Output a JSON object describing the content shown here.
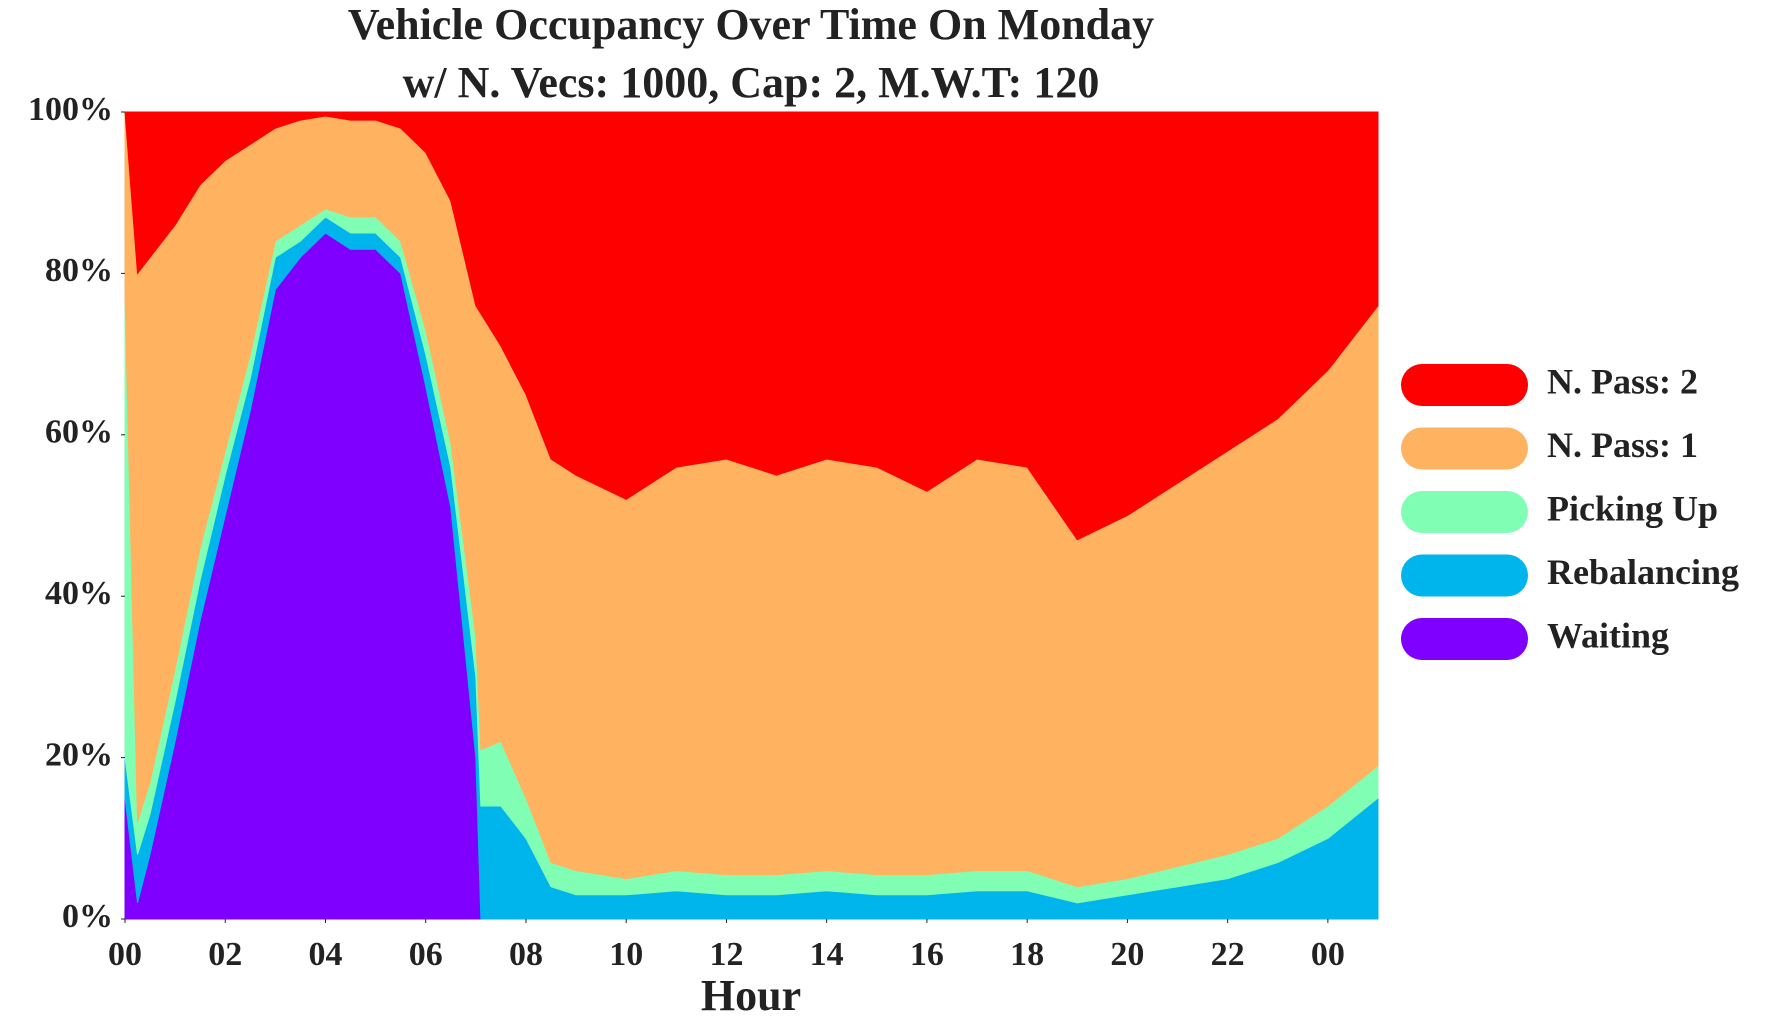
{
  "chart_data": {
    "type": "stacked_area",
    "title": "Vehicle Occupancy Over Time On Monday",
    "subtitle": "w/ N. Vecs: 1000, Cap: 2, M.W.T: 120",
    "x_label": "Hour",
    "x": [
      0,
      0.25,
      0.5,
      1,
      1.5,
      2,
      2.5,
      3,
      3.5,
      4,
      4.5,
      5,
      5.5,
      6,
      6.5,
      7,
      7.1,
      7.5,
      8,
      8.5,
      9,
      10,
      11,
      12,
      13,
      14,
      15,
      16,
      17,
      18,
      19,
      20,
      21,
      22,
      23,
      24,
      25
    ],
    "series": [
      {
        "name": "Waiting",
        "color": "#7f00ff",
        "values": [
          15,
          2,
          8,
          22,
          37,
          50,
          63,
          78,
          82,
          85,
          83,
          83,
          80,
          66,
          51,
          20,
          0,
          0,
          0,
          0,
          0,
          0,
          0,
          0,
          0,
          0,
          0,
          0,
          0,
          0,
          0,
          0,
          0,
          0,
          0,
          0,
          0
        ]
      },
      {
        "name": "Rebalancing",
        "color": "#00b5eb",
        "values": [
          5,
          6,
          5,
          5,
          5,
          5,
          4,
          4,
          2,
          2,
          2,
          2,
          2,
          4,
          5,
          10,
          14,
          14,
          10,
          4,
          3,
          3,
          3.5,
          3,
          3,
          3.5,
          3,
          3,
          3.5,
          3.5,
          2,
          3,
          4,
          5,
          7,
          10,
          15
        ]
      },
      {
        "name": "Picking Up",
        "color": "#80ffb4",
        "values": [
          57,
          4,
          4,
          4,
          4,
          3,
          3,
          2,
          2,
          1,
          2,
          2,
          2,
          3,
          3,
          5,
          7,
          8,
          5,
          3,
          3,
          2,
          2.5,
          2.5,
          2.5,
          2.5,
          2.5,
          2.5,
          2.5,
          2.5,
          2,
          2,
          2.5,
          3,
          3,
          4,
          4
        ]
      },
      {
        "name": "N. Pass: 1",
        "color": "#ffb360",
        "values": [
          23,
          68,
          65,
          55,
          45,
          36,
          26,
          14,
          13,
          11.5,
          12,
          12,
          14,
          22,
          30,
          41,
          54,
          49,
          50,
          50,
          49,
          47,
          50,
          51.5,
          49.5,
          51,
          50.5,
          47.5,
          51,
          50,
          43,
          45,
          47.5,
          50,
          52,
          54,
          57
        ]
      },
      {
        "name": "N. Pass: 2",
        "color": "#ff0000",
        "values": [
          0,
          20,
          18,
          14,
          9,
          6,
          4,
          2,
          1,
          0.5,
          1,
          1,
          2,
          5,
          11,
          24,
          25,
          29,
          35,
          43,
          45,
          48,
          44,
          43,
          45,
          43,
          44,
          47,
          43,
          44,
          53,
          50,
          46,
          42,
          38,
          32,
          24
        ]
      }
    ],
    "xlim": [
      0,
      25
    ],
    "xticks": [
      {
        "value": 0,
        "label": "00"
      },
      {
        "value": 2,
        "label": "02"
      },
      {
        "value": 4,
        "label": "04"
      },
      {
        "value": 6,
        "label": "06"
      },
      {
        "value": 8,
        "label": "08"
      },
      10,
      12,
      14,
      16,
      18,
      20,
      22,
      {
        "value": 24,
        "label": "00"
      }
    ],
    "ylim": [
      0,
      100
    ],
    "yticks": [
      {
        "value": 0,
        "label": "0%"
      },
      {
        "value": 20,
        "label": "20%"
      },
      {
        "value": 40,
        "label": "40%"
      },
      {
        "value": 60,
        "label": "60%"
      },
      {
        "value": 80,
        "label": "80%"
      },
      {
        "value": 100,
        "label": "100%"
      }
    ],
    "grid": false,
    "legend": "right"
  }
}
